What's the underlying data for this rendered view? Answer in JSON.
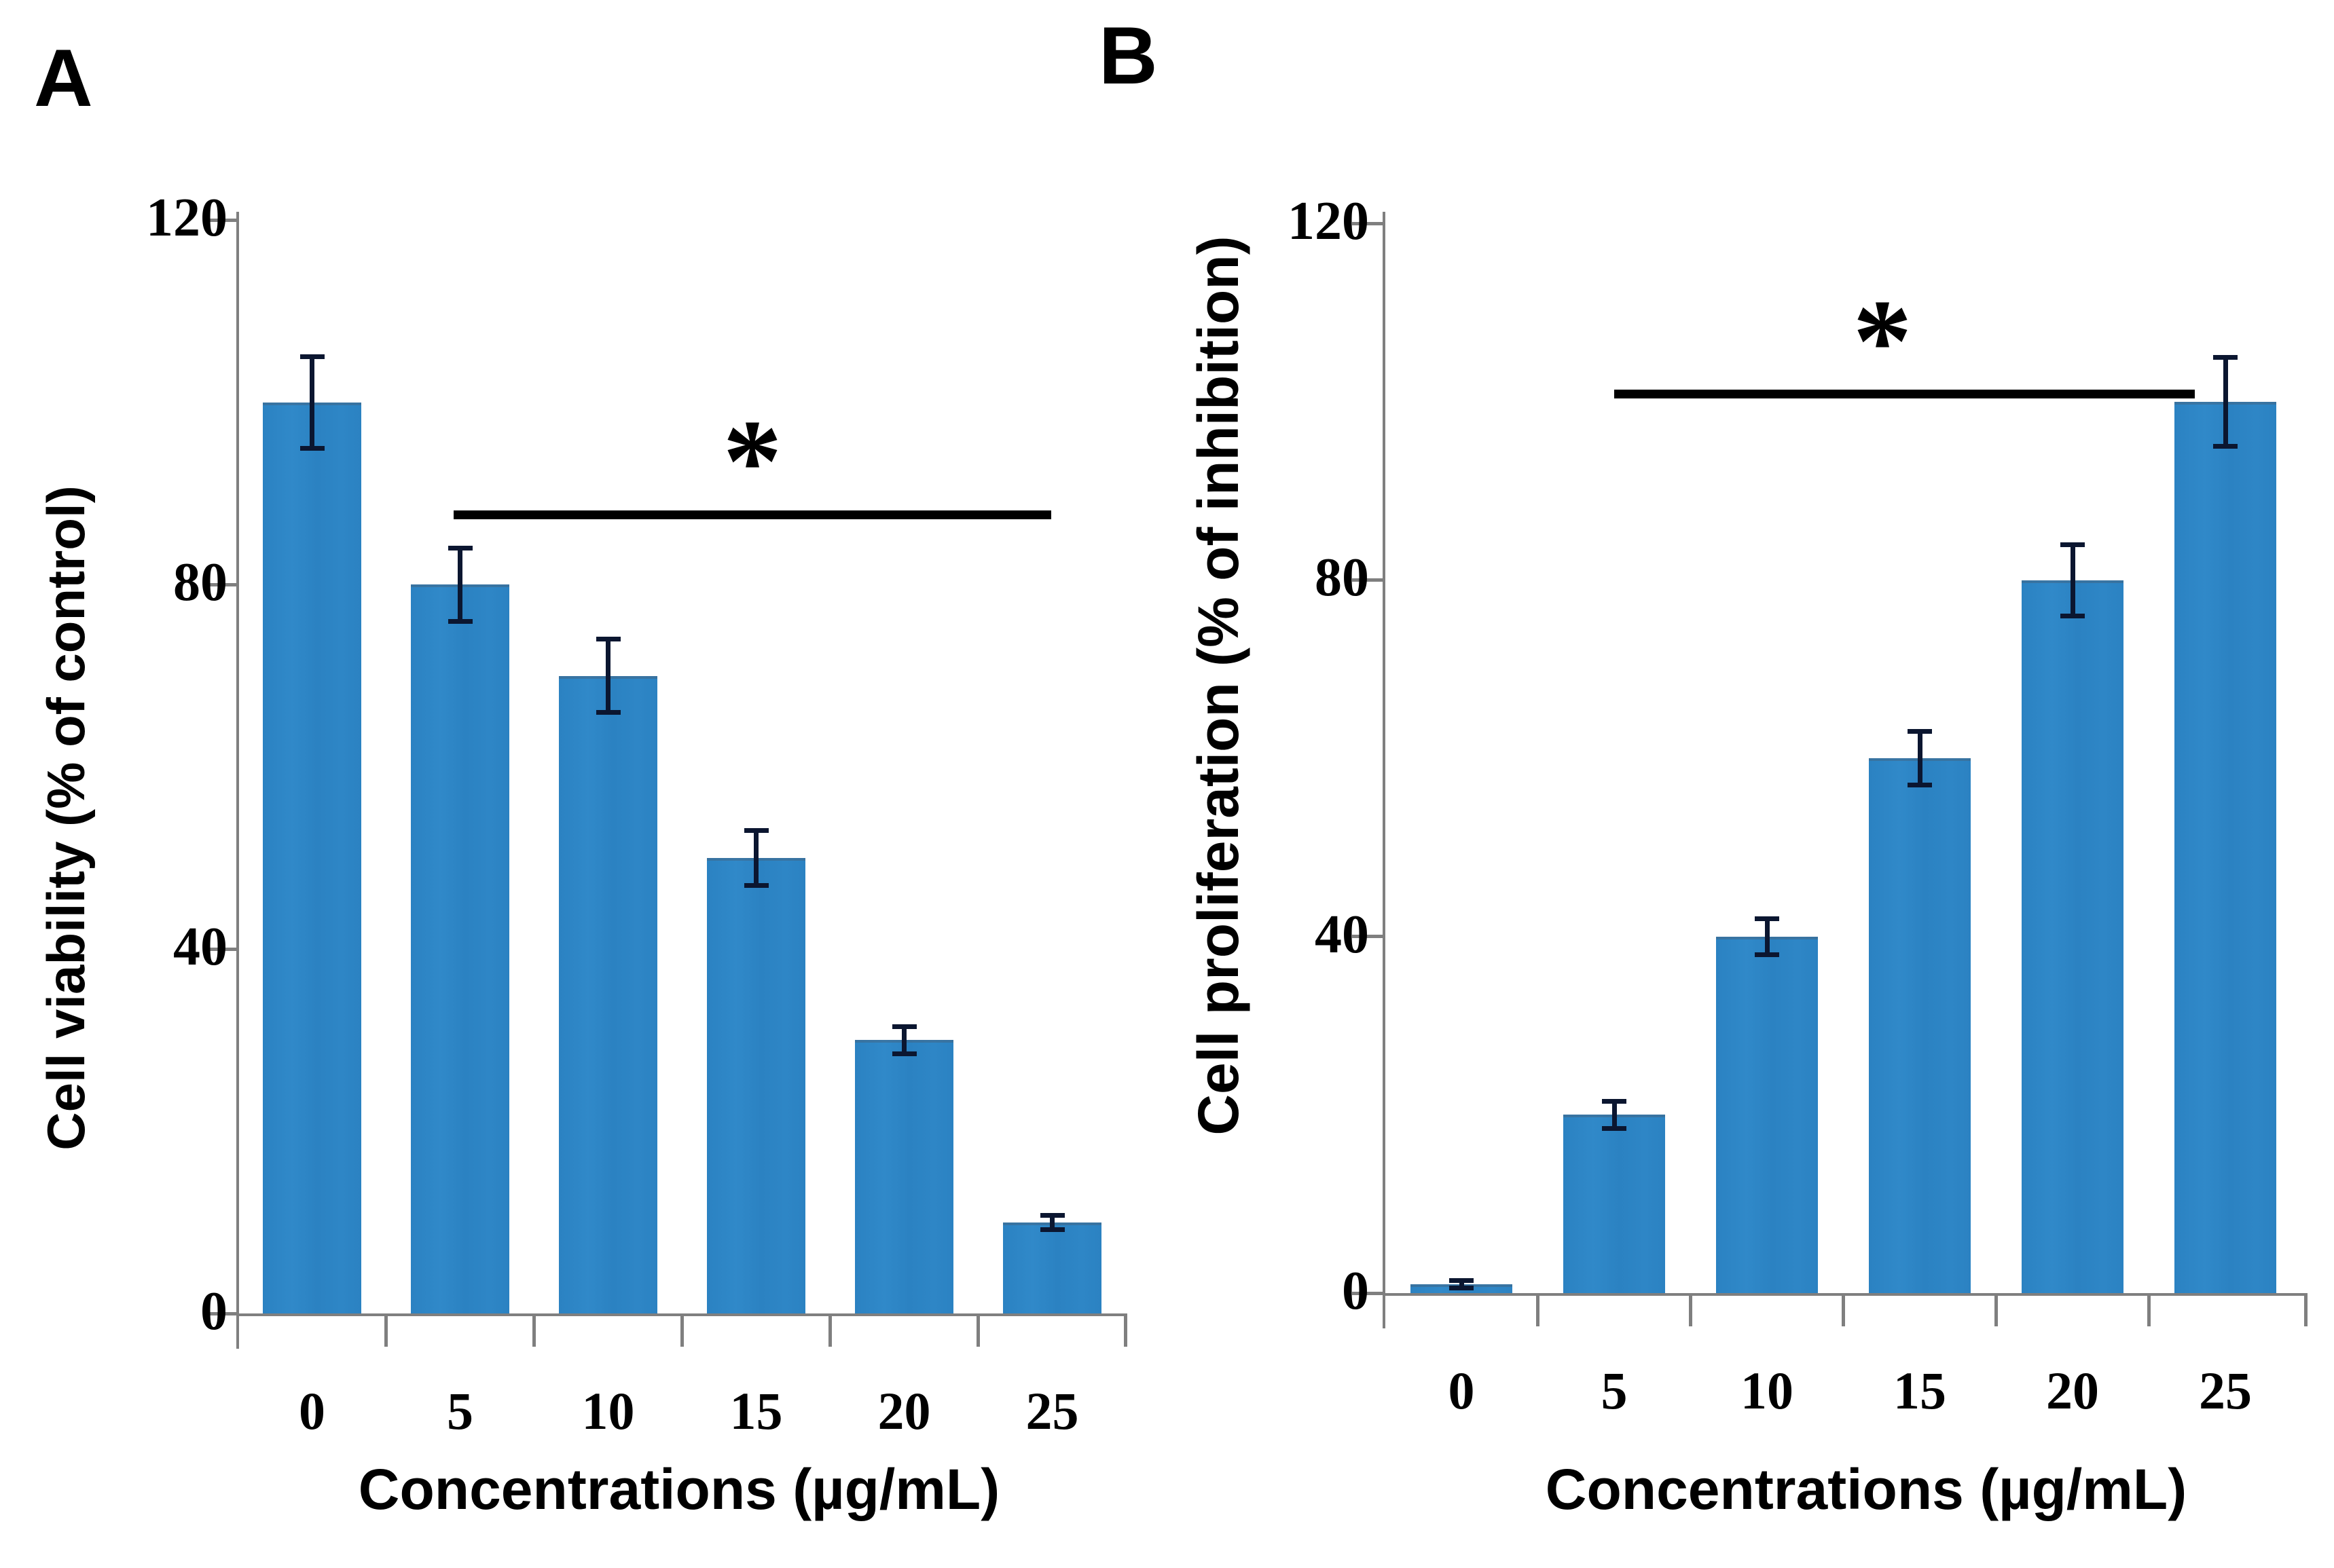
{
  "chart_data": [
    {
      "type": "bar",
      "panel_letter": "A",
      "ylabel": "Cell viability (% of control)",
      "xlabel": "Concentrations (µg/mL)",
      "categories": [
        "0",
        "5",
        "10",
        "15",
        "20",
        "25"
      ],
      "values": [
        100,
        80,
        70,
        50,
        30,
        10
      ],
      "errors": [
        5,
        4,
        4,
        3,
        1.5,
        0.8
      ],
      "yticks": [
        0,
        40,
        80,
        120
      ],
      "ylim": [
        0,
        120
      ],
      "grid": false,
      "legend": null,
      "significance": {
        "symbol": "*",
        "from_category": "5",
        "to_category": "25",
        "approx_level": 86
      }
    },
    {
      "type": "bar",
      "panel_letter": "B",
      "ylabel": "Cell proliferation (% of inhibition)",
      "xlabel": "Concentrations (µg/mL)",
      "categories": [
        "0",
        "5",
        "10",
        "15",
        "20",
        "25"
      ],
      "values": [
        1,
        20,
        40,
        60,
        80,
        100
      ],
      "errors": [
        0.4,
        1.5,
        2,
        3,
        4,
        5
      ],
      "yticks": [
        0,
        40,
        80,
        120
      ],
      "ylim": [
        0,
        120
      ],
      "grid": false,
      "legend": null,
      "significance": {
        "symbol": "*",
        "from_category": "5",
        "to_category": "25",
        "approx_level": 101
      }
    }
  ],
  "style": {
    "background": "#ffffff",
    "bar_color": "#2b83c4",
    "error_bar_color": "#0b1630",
    "axis_color": "#7f7f7f",
    "text_color": "#000000",
    "significance_color": "#000000"
  }
}
